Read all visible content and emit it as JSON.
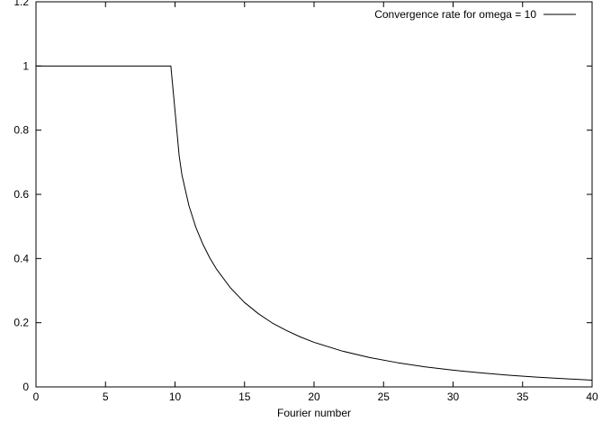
{
  "chart_data": {
    "type": "line",
    "title": "",
    "xlabel": "Fourier number",
    "ylabel": "",
    "xlim": [
      0,
      40
    ],
    "ylim": [
      0,
      1.2
    ],
    "xticks": [
      0,
      5,
      10,
      15,
      20,
      25,
      30,
      35,
      40
    ],
    "yticks": [
      0,
      0.2,
      0.4,
      0.6,
      0.8,
      1,
      1.2
    ],
    "xtick_labels": [
      "0",
      "5",
      "10",
      "15",
      "20",
      "25",
      "30",
      "35",
      "40"
    ],
    "ytick_labels": [
      "0",
      "0.2",
      "0.4",
      "0.6",
      "0.8",
      "1",
      "1.2"
    ],
    "grid": false,
    "legend_position": "top-right",
    "series": [
      {
        "name": "Convergence rate for omega = 10",
        "color": "#000000",
        "x": [
          0,
          5,
          9.5,
          9.7,
          10,
          10.3,
          10.5,
          11,
          11.5,
          12,
          12.5,
          13,
          14,
          15,
          16,
          17,
          18,
          19,
          20,
          22,
          24,
          26,
          28,
          30,
          32,
          34,
          36,
          38,
          40
        ],
        "y": [
          1,
          1,
          1,
          1,
          0.86,
          0.72,
          0.66,
          0.565,
          0.497,
          0.445,
          0.402,
          0.366,
          0.308,
          0.263,
          0.228,
          0.199,
          0.176,
          0.156,
          0.139,
          0.112,
          0.0915,
          0.0755,
          0.0625,
          0.0522,
          0.0438,
          0.0365,
          0.0305,
          0.0255,
          0.021
        ]
      }
    ]
  }
}
